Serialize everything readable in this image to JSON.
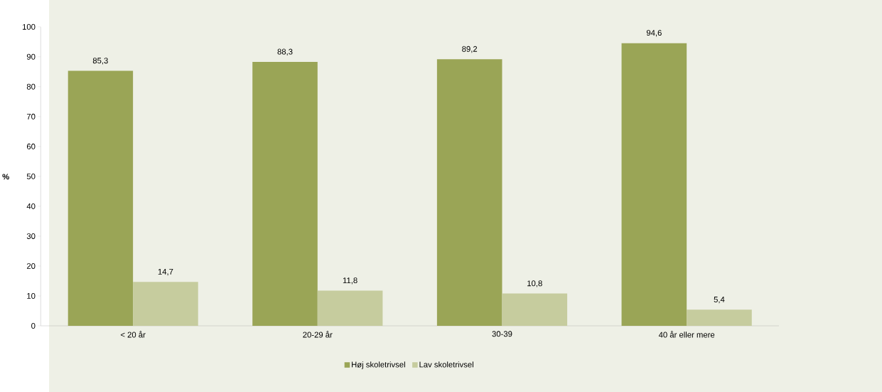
{
  "chart_data": {
    "type": "bar",
    "ylabel": "%",
    "categories": [
      "< 20 år",
      "20-29 år",
      "30-39",
      "40 år eller mere"
    ],
    "series": [
      {
        "name": "Høj skoletrivsel",
        "color": "#9aa556",
        "values": [
          85.3,
          88.3,
          89.2,
          94.6
        ],
        "value_labels": [
          "85,3",
          "88,3",
          "89,2",
          "94,6"
        ]
      },
      {
        "name": "Lav skoletrivsel",
        "color": "#c6cc9e",
        "values": [
          14.7,
          11.8,
          10.8,
          5.4
        ],
        "value_labels": [
          "14,7",
          "11,8",
          "10,8",
          "5,4"
        ]
      }
    ],
    "ylim": [
      0,
      100
    ],
    "yticks": [
      0,
      10,
      20,
      30,
      40,
      50,
      60,
      70,
      80,
      90,
      100
    ],
    "grid": false,
    "legend": "bottom"
  }
}
